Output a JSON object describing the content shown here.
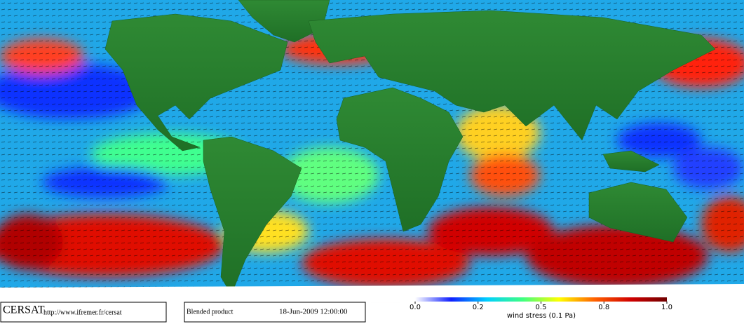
{
  "map": {
    "footer": {
      "logo": "CERSAT",
      "url": "http://www.ifremer.fr/cersat",
      "product": "Blended product",
      "date": "18-Jun-2009 12:00:00"
    },
    "colorbar": {
      "label": "wind stress (0.1 Pa)",
      "ticks": [
        {
          "value": 0,
          "label": "0.0"
        },
        0.2,
        0.5,
        0.8,
        {
          "value": 1,
          "label": "1.0"
        }
      ],
      "colors": [
        "#ffffff",
        "#1020ff",
        "#00d0ff",
        "#40ff80",
        "#ffff00",
        "#ff6000",
        "#d00000",
        "#700000"
      ]
    }
  }
}
